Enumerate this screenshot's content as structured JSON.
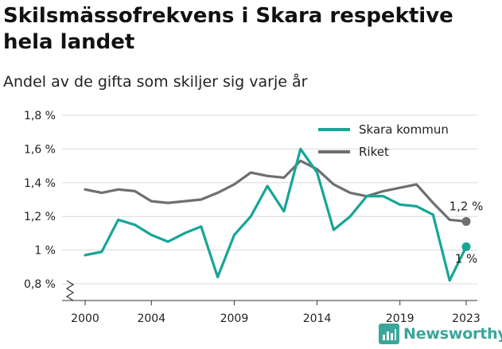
{
  "title": "Skilsmässofrekvens i Skara respektive hela landet",
  "subtitle": "Andel av de gifta som skiljer sig varje år",
  "brand": {
    "name": "Newsworthy"
  },
  "colors": {
    "skara": "#17a596",
    "riket": "#6e6e73",
    "grid": "#d9d9d9",
    "axis": "#333333"
  },
  "chart_data": {
    "type": "line",
    "x": [
      2000,
      2001,
      2002,
      2003,
      2004,
      2005,
      2006,
      2007,
      2008,
      2009,
      2010,
      2011,
      2012,
      2013,
      2014,
      2015,
      2016,
      2017,
      2018,
      2019,
      2020,
      2021,
      2022,
      2023
    ],
    "series": [
      {
        "name": "Skara kommun",
        "color": "#17a596",
        "values": [
          0.97,
          0.99,
          1.18,
          1.15,
          1.09,
          1.05,
          1.1,
          1.14,
          0.84,
          1.09,
          1.2,
          1.38,
          1.23,
          1.6,
          1.46,
          1.12,
          1.2,
          1.32,
          1.32,
          1.27,
          1.26,
          1.21,
          0.82,
          1.02
        ],
        "end_label": "1 %"
      },
      {
        "name": "Riket",
        "color": "#6e6e73",
        "values": [
          1.36,
          1.34,
          1.36,
          1.35,
          1.29,
          1.28,
          1.29,
          1.3,
          1.34,
          1.39,
          1.46,
          1.44,
          1.43,
          1.53,
          1.48,
          1.39,
          1.34,
          1.32,
          1.35,
          1.37,
          1.39,
          1.28,
          1.18,
          1.17
        ],
        "end_label": "1,2 %"
      }
    ],
    "y_ticks": [
      {
        "value": 0.8,
        "label": "0,8 %"
      },
      {
        "value": 1.0,
        "label": "1 %"
      },
      {
        "value": 1.2,
        "label": "1,2 %"
      },
      {
        "value": 1.4,
        "label": "1,4 %"
      },
      {
        "value": 1.6,
        "label": "1,6 %"
      },
      {
        "value": 1.8,
        "label": "1,8 %"
      }
    ],
    "x_ticks": [
      {
        "value": 2000,
        "label": "2000"
      },
      {
        "value": 2004,
        "label": "2004"
      },
      {
        "value": 2009,
        "label": "2009"
      },
      {
        "value": 2014,
        "label": "2014"
      },
      {
        "value": 2019,
        "label": "2019"
      },
      {
        "value": 2023,
        "label": "2023"
      }
    ],
    "ylim": [
      0.8,
      1.8
    ],
    "xlim": [
      2000,
      2023
    ],
    "y_axis_break": true,
    "grid": "horizontal",
    "legend": "top-right"
  }
}
